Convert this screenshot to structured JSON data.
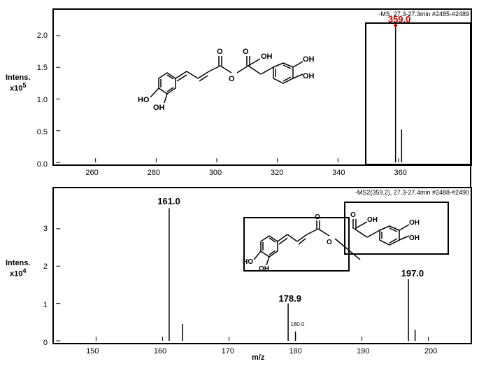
{
  "top_panel": {
    "annotation": "-MS, 27.3-27.3min #2485-#2489",
    "y_title": "Intens.",
    "y_scale": "x10",
    "y_exp": "5",
    "peaks": [
      {
        "mz": 359.0,
        "intensity": 2.15,
        "label": "359.0",
        "label_color": "#c00000"
      },
      {
        "mz": 361.0,
        "intensity": 0.52,
        "label": ""
      }
    ],
    "x_ticks": [
      260,
      280,
      300,
      320,
      340,
      360
    ],
    "y_ticks": [
      "0.0",
      "0.5",
      "1.0",
      "1.5",
      "2.0"
    ],
    "ylim_max": 2.3,
    "xlim_min": 247,
    "xlim_max": 383
  },
  "bottom_panel": {
    "annotation": "-MS2(359.2), 27.3-27.4min #2488-#2490",
    "y_title": "Intens.",
    "y_scale": "x10",
    "y_exp": "4",
    "peaks": [
      {
        "mz": 161.0,
        "intensity": 3.55,
        "label": "161.0"
      },
      {
        "mz": 163.0,
        "intensity": 0.45,
        "label": ""
      },
      {
        "mz": 178.9,
        "intensity": 1.0,
        "label": "178.9"
      },
      {
        "mz": 180.0,
        "intensity": 0.25,
        "label": "180.0",
        "small": true
      },
      {
        "mz": 197.0,
        "intensity": 1.65,
        "label": "197.0"
      },
      {
        "mz": 198.0,
        "intensity": 0.3,
        "label": ""
      }
    ],
    "x_ticks": [
      150,
      160,
      170,
      180,
      190,
      200
    ],
    "y_ticks": [
      "0",
      "1",
      "2",
      "3"
    ],
    "ylim_max": 3.9,
    "xlim_min": 144,
    "xlim_max": 206
  },
  "xaxis_label": "m/z"
}
